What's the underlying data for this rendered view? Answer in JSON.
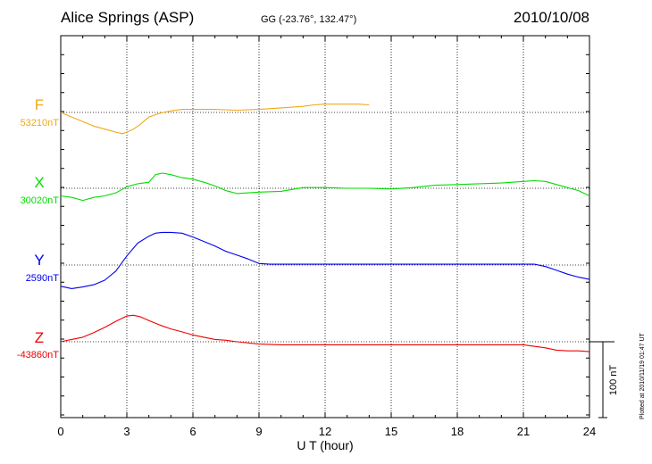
{
  "header": {
    "station": "Alice Springs (ASP)",
    "coords": "GG (-23.76°, 132.47°)",
    "date": "2010/10/08"
  },
  "plotted_note": "Plotted at 2010/11/19 01:47 UT",
  "scale_label": "100 nT",
  "chart_data": {
    "type": "line",
    "xlabel": "U T (hour)",
    "xlim": [
      0,
      24
    ],
    "xticks": [
      "0",
      "3",
      "6",
      "9",
      "12",
      "15",
      "18",
      "21",
      "24"
    ],
    "grid": true,
    "nT_per_division": 100,
    "series": [
      {
        "name": "F",
        "baseline": "53210nT",
        "color": "#f0a818",
        "x": [
          0,
          0.5,
          1,
          1.5,
          2,
          2.5,
          2.8,
          3,
          3.3,
          3.6,
          4,
          4.5,
          5,
          5.5,
          6,
          7,
          8,
          9,
          10,
          11,
          11.5,
          12,
          12.5,
          13,
          13.5,
          14
        ],
        "y": [
          0,
          -6,
          -12,
          -18,
          -22,
          -26,
          -28,
          -26,
          -22,
          -16,
          -6,
          -1,
          2,
          4,
          4,
          4,
          3,
          4,
          6,
          8,
          10,
          11,
          11,
          11,
          11,
          10
        ]
      },
      {
        "name": "X",
        "baseline": "30020nT",
        "color": "#00dd00",
        "x": [
          0,
          0.5,
          1,
          1.5,
          2,
          2.5,
          3,
          3.5,
          4,
          4.3,
          4.6,
          5,
          5.5,
          6,
          6.5,
          7,
          7.5,
          8,
          9,
          10,
          11,
          12,
          13,
          14,
          15,
          16,
          17,
          18,
          19,
          20,
          21,
          21.5,
          22,
          22.5,
          23,
          23.5,
          24
        ],
        "y": [
          -10,
          -12,
          -16,
          -12,
          -10,
          -6,
          2,
          6,
          8,
          18,
          20,
          18,
          14,
          12,
          8,
          3,
          -3,
          -7,
          -5,
          -4,
          1,
          1,
          0,
          0,
          -1,
          1,
          4,
          5,
          6,
          7,
          9,
          10,
          9,
          5,
          1,
          -3,
          -10
        ]
      },
      {
        "name": "Y",
        "baseline": "2590nT",
        "color": "#0000ee",
        "x": [
          0,
          0.5,
          1,
          1.5,
          2,
          2.5,
          3,
          3.5,
          4,
          4.3,
          4.6,
          5,
          5.5,
          6,
          6.5,
          7,
          7.5,
          8,
          8.5,
          9,
          9.5,
          10,
          11,
          12,
          13,
          14,
          15,
          16,
          17,
          18,
          19,
          20,
          21,
          21.5,
          22,
          22.5,
          23,
          23.5,
          24
        ],
        "y": [
          -28,
          -31,
          -29,
          -26,
          -20,
          -8,
          12,
          29,
          38,
          42,
          43,
          43,
          42,
          37,
          31,
          25,
          18,
          13,
          8,
          2,
          1,
          1,
          1,
          1,
          1,
          1,
          1,
          1,
          1,
          1,
          1,
          1,
          1,
          1,
          -2,
          -7,
          -12,
          -16,
          -19
        ]
      },
      {
        "name": "Z",
        "baseline": "-43860nT",
        "color": "#ee0000",
        "x": [
          0,
          0.5,
          1,
          1.5,
          2,
          2.5,
          3,
          3.3,
          3.6,
          4,
          4.5,
          5,
          5.5,
          6,
          6.5,
          7,
          7.5,
          8,
          9,
          10,
          11,
          12,
          13,
          14,
          15,
          16,
          17,
          18,
          19,
          20,
          21,
          22,
          22.5,
          23,
          23.5,
          24
        ],
        "y": [
          0,
          3,
          6,
          12,
          19,
          27,
          34,
          35,
          33,
          28,
          22,
          17,
          13,
          9,
          6,
          3,
          2,
          0,
          -3,
          -4,
          -4,
          -4,
          -4,
          -4,
          -4,
          -4,
          -4,
          -4,
          -4,
          -4,
          -4,
          -8,
          -11,
          -12,
          -12,
          -13
        ]
      }
    ]
  }
}
